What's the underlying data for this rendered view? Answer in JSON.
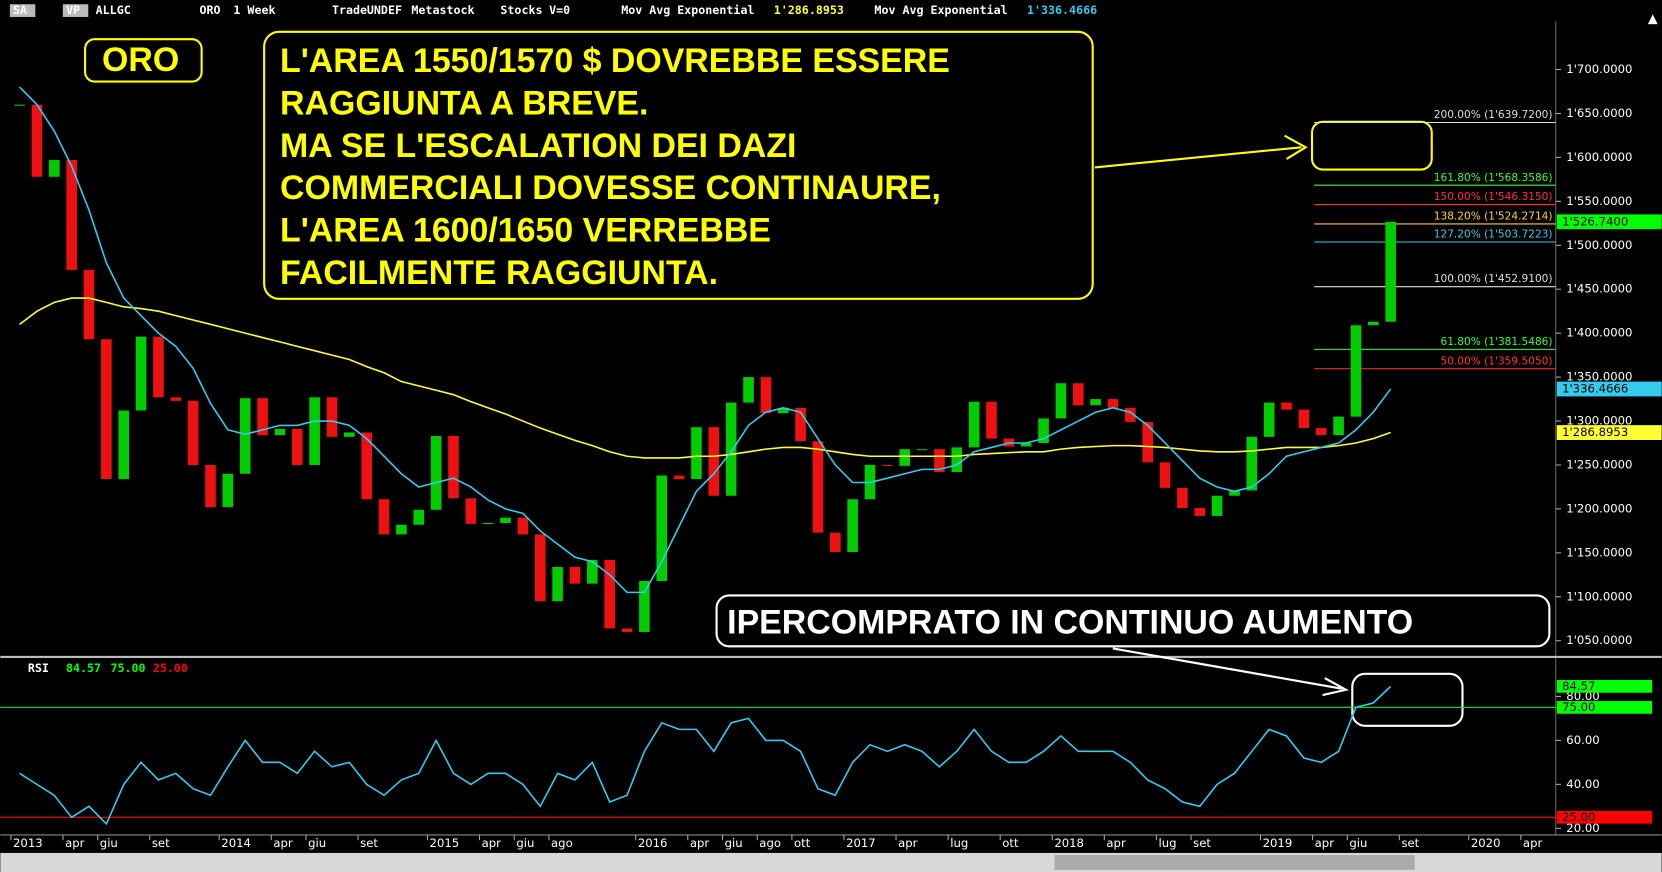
{
  "header": {
    "items": [
      "SA",
      "VP",
      "ALLGC",
      "ORO",
      "1 Week",
      "Trade",
      "UNDEF",
      "Metastock",
      "Stocks",
      "V=0"
    ],
    "ma1_name": "Mov Avg Exponential",
    "ma1_value": "1'286.8953",
    "ma2_name": "Mov Avg Exponential",
    "ma2_value": "1'336.4666"
  },
  "chart_data": [
    {
      "type": "candlestick",
      "categories": [
        "2013",
        null,
        null,
        "apr",
        null,
        "giu",
        null,
        null,
        "set",
        null,
        null,
        null,
        "2014",
        null,
        null,
        "apr",
        null,
        "giu",
        null,
        null,
        "set",
        null,
        null,
        null,
        "2015",
        null,
        null,
        "apr",
        null,
        "giu",
        null,
        "ago",
        null,
        null,
        null,
        null,
        "2016",
        null,
        null,
        "apr",
        null,
        "giu",
        null,
        "ago",
        null,
        "ott",
        null,
        null,
        "2017",
        null,
        null,
        "apr",
        null,
        null,
        "lug",
        null,
        null,
        "ott",
        null,
        null,
        "2018",
        null,
        null,
        "apr",
        null,
        null,
        "lug",
        null,
        "set",
        null,
        null,
        null,
        "2019",
        null,
        null,
        "apr",
        null,
        "giu",
        null,
        null,
        "set",
        null,
        null,
        null,
        "2020",
        null,
        null,
        "apr"
      ],
      "series": [
        {
          "name": "ORO",
          "values": [
            1660,
            1578,
            1597,
            1472,
            1393,
            1234,
            1312,
            1396,
            1327,
            1323,
            1250,
            1202,
            1240,
            1326,
            1284,
            1291,
            1250,
            1327,
            1282,
            1287,
            1211,
            1171,
            1182,
            1199,
            1283,
            1212,
            1183,
            1184,
            1190,
            1171,
            1095,
            1134,
            1115,
            1142,
            1064,
            1060,
            1118,
            1238,
            1234,
            1293,
            1215,
            1321,
            1350,
            1309,
            1315,
            1277,
            1173,
            1151,
            1211,
            1250,
            1249,
            1268,
            1268,
            1242,
            1270,
            1322,
            1280,
            1271,
            1275,
            1303,
            1343,
            1318,
            1325,
            1315,
            1299,
            1253,
            1224,
            1201,
            1192,
            1215,
            1221,
            1282,
            1321,
            1313,
            1292,
            1284,
            1305,
            1409,
            1413,
            1526.74,
            null,
            null,
            null,
            null,
            null,
            null,
            null,
            null
          ],
          "last_value_label": "1'526.7400",
          "color": "#00ff00"
        },
        {
          "name": "Mov Avg Exponential",
          "color": "#ffff33",
          "last_value_label": "1'286.8953",
          "values": [
            1410,
            1425,
            1435,
            1440,
            1440,
            1435,
            1430,
            1428,
            1425,
            1420,
            1415,
            1410,
            1405,
            1400,
            1395,
            1390,
            1385,
            1380,
            1375,
            1370,
            1362,
            1355,
            1345,
            1340,
            1335,
            1330,
            1322,
            1315,
            1308,
            1300,
            1292,
            1285,
            1278,
            1272,
            1265,
            1260,
            1258,
            1258,
            1258,
            1260,
            1260,
            1262,
            1265,
            1268,
            1270,
            1270,
            1268,
            1265,
            1262,
            1260,
            1260,
            1260,
            1260,
            1260,
            1260,
            1262,
            1263,
            1264,
            1265,
            1265,
            1268,
            1270,
            1271,
            1272,
            1272,
            1271,
            1270,
            1268,
            1266,
            1265,
            1265,
            1266,
            1268,
            1270,
            1270,
            1270,
            1272,
            1275,
            1280,
            1286.8953,
            null,
            null,
            null,
            null,
            null,
            null,
            null,
            null
          ]
        },
        {
          "name": "Mov Avg Exponential",
          "color": "#33ccee",
          "last_value_label": "1'336.4666",
          "values": [
            1680,
            1660,
            1630,
            1590,
            1540,
            1480,
            1440,
            1420,
            1400,
            1385,
            1360,
            1320,
            1290,
            1285,
            1290,
            1295,
            1295,
            1300,
            1300,
            1295,
            1280,
            1260,
            1240,
            1225,
            1230,
            1235,
            1225,
            1210,
            1200,
            1195,
            1175,
            1160,
            1145,
            1140,
            1125,
            1105,
            1105,
            1140,
            1180,
            1220,
            1240,
            1265,
            1295,
            1310,
            1315,
            1310,
            1280,
            1250,
            1230,
            1230,
            1235,
            1240,
            1245,
            1245,
            1250,
            1265,
            1270,
            1275,
            1275,
            1280,
            1290,
            1300,
            1310,
            1315,
            1310,
            1295,
            1275,
            1255,
            1235,
            1225,
            1220,
            1225,
            1240,
            1260,
            1265,
            1270,
            1275,
            1290,
            1310,
            1336.4666,
            null,
            null,
            null,
            null,
            null,
            null,
            null,
            null
          ]
        }
      ],
      "ylim": [
        1034,
        1755
      ],
      "yticks": [
        {
          "value": 1050,
          "label": "1'050.0000"
        },
        {
          "value": 1100,
          "label": "1'100.0000"
        },
        {
          "value": 1150,
          "label": "1'150.0000"
        },
        {
          "value": 1200,
          "label": "1'200.0000"
        },
        {
          "value": 1250,
          "label": "1'250.0000"
        },
        {
          "value": 1300,
          "label": "1'300.0000"
        },
        {
          "value": 1350,
          "label": "1'350.0000"
        },
        {
          "value": 1400,
          "label": "1'400.0000"
        },
        {
          "value": 1450,
          "label": "1'450.0000"
        },
        {
          "value": 1500,
          "label": "1'500.0000"
        },
        {
          "value": 1550,
          "label": "1'550.0000"
        },
        {
          "value": 1600,
          "label": "1'600.0000"
        },
        {
          "value": 1650,
          "label": "1'650.0000"
        },
        {
          "value": 1700,
          "label": "1'700.0000"
        }
      ],
      "fib_levels": [
        {
          "value": 1639.72,
          "label": "200.00% (1'639.7200)",
          "color": "#dddddd"
        },
        {
          "value": 1568.3586,
          "label": "161.80% (1'568.3586)",
          "color": "#33ff33"
        },
        {
          "value": 1546.315,
          "label": "150.00% (1'546.3150)",
          "color": "#ff3333"
        },
        {
          "value": 1524.2714,
          "label": "138.20% (1'524.2714)",
          "color": "#ffcc33"
        },
        {
          "value": 1503.7223,
          "label": "127.20% (1'503.7223)",
          "color": "#33ccee"
        },
        {
          "value": 1452.91,
          "label": "100.00% (1'452.9100)",
          "color": "#dddddd"
        },
        {
          "value": 1381.5486,
          "label": "61.80% (1'381.5486)",
          "color": "#33ff33"
        },
        {
          "value": 1359.505,
          "label": "50.00% (1'359.5050)",
          "color": "#ff3333"
        }
      ],
      "annotations": [
        "ORO",
        "L'AREA 1550/1570 $ DOVREBBE ESSERE",
        "RAGGIUNTA A BREVE.",
        "MA SE L'ESCALATION DEI DAZI",
        "COMMERCIALI DOVESSE CONTINAURE,",
        "L'AREA 1600/1650 VERREBBE",
        "FACILMENTE RAGGIUNTA.",
        "IPERCOMPRATO IN CONTINUO AUMENTO"
      ]
    },
    {
      "type": "line",
      "title": "RSI",
      "color": "#33ccee",
      "values": [
        45,
        40,
        35,
        25,
        30,
        22,
        40,
        50,
        42,
        45,
        38,
        35,
        48,
        60,
        50,
        50,
        45,
        55,
        48,
        50,
        40,
        35,
        42,
        45,
        60,
        45,
        40,
        45,
        45,
        40,
        30,
        45,
        42,
        50,
        32,
        35,
        55,
        68,
        65,
        65,
        55,
        68,
        70,
        60,
        60,
        55,
        38,
        35,
        50,
        58,
        55,
        58,
        55,
        48,
        55,
        65,
        55,
        50,
        50,
        55,
        62,
        55,
        55,
        55,
        50,
        42,
        38,
        32,
        30,
        40,
        45,
        55,
        65,
        62,
        52,
        50,
        55,
        75,
        77,
        84.57,
        null,
        null,
        null,
        null,
        null,
        null,
        null,
        null
      ],
      "ylim": [
        17,
        97
      ],
      "yticks": [
        {
          "value": 20,
          "label": "20.00"
        },
        {
          "value": 40,
          "label": "40.00"
        },
        {
          "value": 60,
          "label": "60.00"
        },
        {
          "value": 80,
          "label": "80.00"
        }
      ],
      "levels": [
        {
          "value": 75,
          "label": "75.00",
          "color": "#00ff00"
        },
        {
          "value": 25,
          "label": "25.00",
          "color": "#ff0000"
        }
      ],
      "last_label": "84.57"
    }
  ]
}
